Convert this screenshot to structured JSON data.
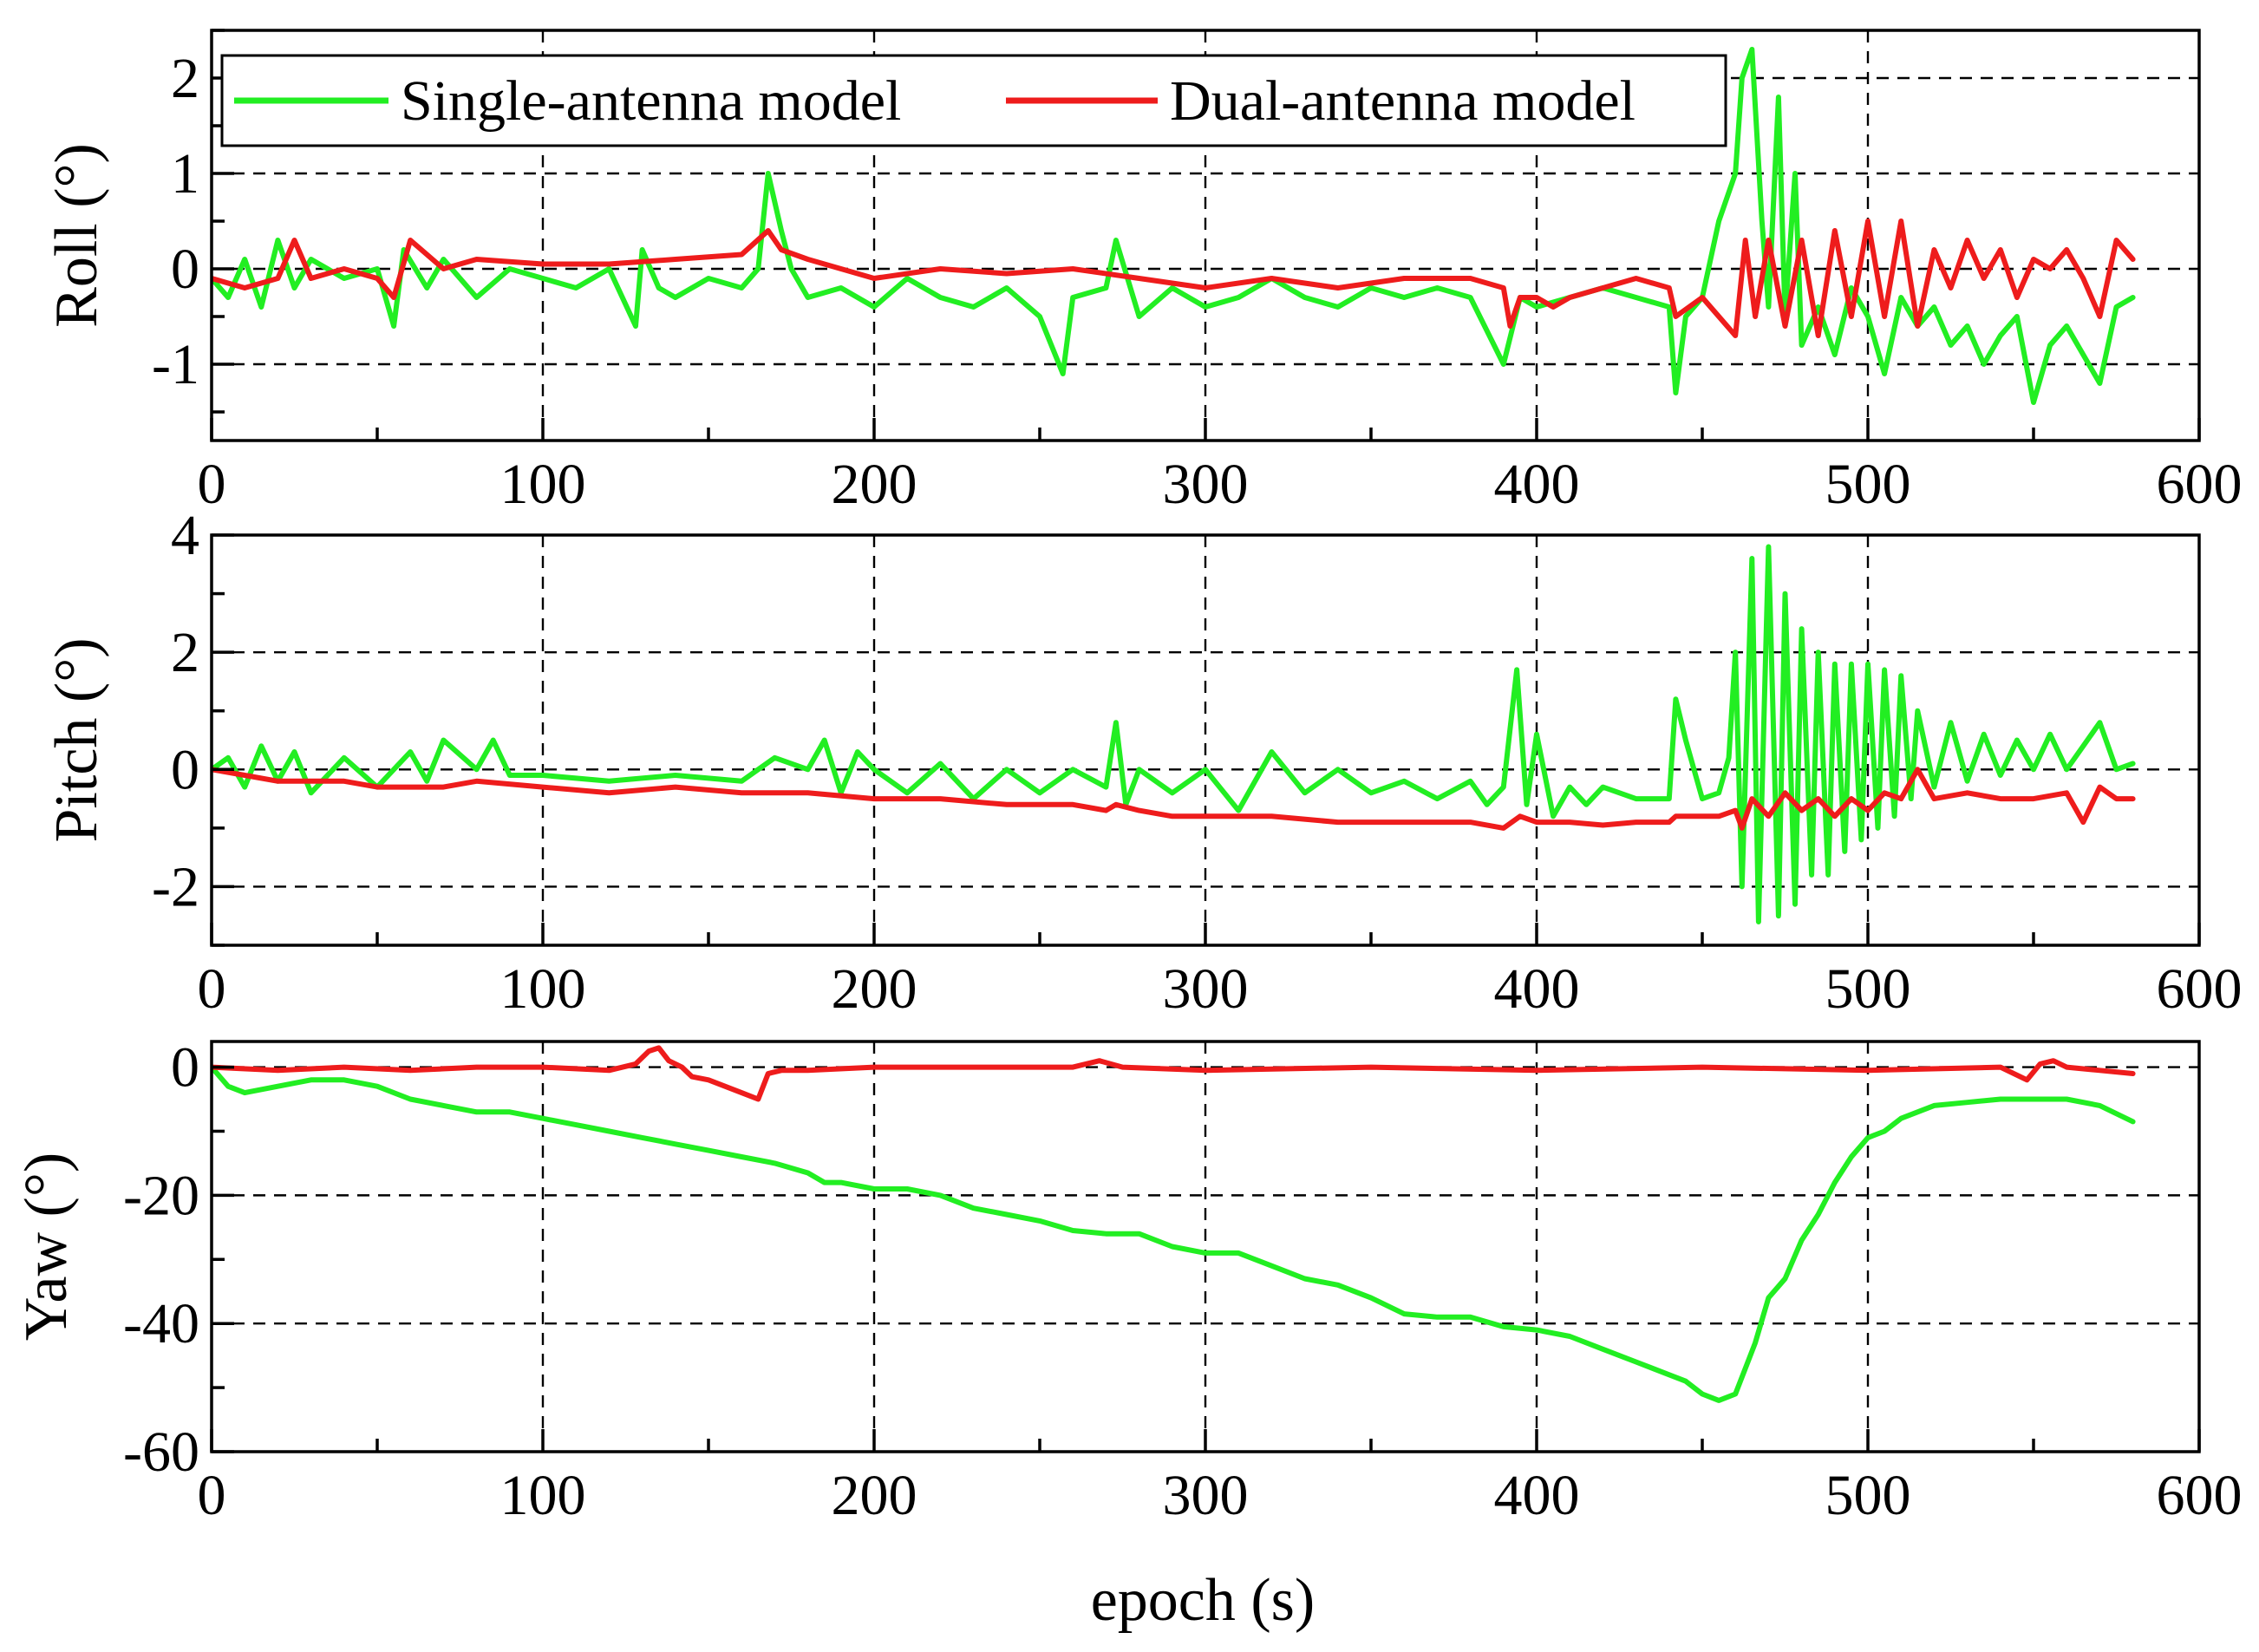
{
  "chart_data": {
    "type": "line",
    "xlabel": "epoch (s)",
    "x_range": [
      0,
      600
    ],
    "x_ticks": [
      0,
      100,
      200,
      300,
      400,
      500,
      600
    ],
    "legend": {
      "placement": "top-left of first panel",
      "entries": [
        "Single-antenna model",
        "Dual-antenna model"
      ]
    },
    "colors": {
      "single": "#22ee22",
      "dual": "#ee1c1c"
    },
    "panels": [
      {
        "id": "roll",
        "ylabel": "Roll (°)",
        "ylim": [
          -1.8,
          2.5
        ],
        "y_ticks": [
          -1,
          0,
          1,
          2
        ],
        "series": [
          {
            "name": "Single-antenna model",
            "x": [
              0,
              5,
              10,
              15,
              20,
              25,
              30,
              40,
              50,
              55,
              58,
              65,
              70,
              80,
              90,
              100,
              110,
              120,
              128,
              130,
              135,
              140,
              150,
              160,
              165,
              168,
              172,
              175,
              180,
              190,
              200,
              210,
              220,
              230,
              240,
              250,
              257,
              260,
              270,
              273,
              280,
              290,
              300,
              310,
              320,
              330,
              340,
              350,
              360,
              370,
              380,
              390,
              395,
              400,
              410,
              420,
              430,
              440,
              442,
              445,
              450,
              455,
              460,
              462,
              465,
              468,
              470,
              473,
              475,
              478,
              480,
              485,
              490,
              495,
              500,
              505,
              510,
              515,
              520,
              525,
              530,
              535,
              540,
              545,
              550,
              555,
              560,
              565,
              570,
              575,
              580
            ],
            "values": [
              -0.1,
              -0.3,
              0.1,
              -0.4,
              0.3,
              -0.2,
              0.1,
              -0.1,
              0.0,
              -0.6,
              0.2,
              -0.2,
              0.1,
              -0.3,
              0.0,
              -0.1,
              -0.2,
              0.0,
              -0.6,
              0.2,
              -0.2,
              -0.3,
              -0.1,
              -0.2,
              0.0,
              1.0,
              0.4,
              0.0,
              -0.3,
              -0.2,
              -0.4,
              -0.1,
              -0.3,
              -0.4,
              -0.2,
              -0.5,
              -1.1,
              -0.3,
              -0.2,
              0.3,
              -0.5,
              -0.2,
              -0.4,
              -0.3,
              -0.1,
              -0.3,
              -0.4,
              -0.2,
              -0.3,
              -0.2,
              -0.3,
              -1.0,
              -0.3,
              -0.4,
              -0.3,
              -0.2,
              -0.3,
              -0.4,
              -1.3,
              -0.5,
              -0.3,
              0.5,
              1.0,
              2.0,
              2.3,
              0.5,
              -0.4,
              1.8,
              -0.5,
              1.0,
              -0.8,
              -0.4,
              -0.9,
              -0.2,
              -0.5,
              -1.1,
              -0.3,
              -0.6,
              -0.4,
              -0.8,
              -0.6,
              -1.0,
              -0.7,
              -0.5,
              -1.4,
              -0.8,
              -0.6,
              -0.9,
              -1.2,
              -0.4,
              -0.3
            ]
          },
          {
            "name": "Dual-antenna model",
            "x": [
              0,
              10,
              20,
              25,
              30,
              40,
              50,
              55,
              60,
              70,
              80,
              100,
              120,
              140,
              160,
              168,
              172,
              180,
              190,
              200,
              220,
              240,
              260,
              280,
              300,
              320,
              340,
              360,
              380,
              390,
              392,
              395,
              400,
              405,
              410,
              420,
              430,
              440,
              442,
              450,
              455,
              460,
              463,
              466,
              470,
              475,
              480,
              485,
              490,
              495,
              500,
              505,
              510,
              515,
              520,
              525,
              530,
              535,
              540,
              545,
              550,
              555,
              560,
              565,
              570,
              575,
              580
            ],
            "values": [
              -0.1,
              -0.2,
              -0.1,
              0.3,
              -0.1,
              0.0,
              -0.1,
              -0.3,
              0.3,
              0.0,
              0.1,
              0.05,
              0.05,
              0.1,
              0.15,
              0.4,
              0.2,
              0.1,
              0.0,
              -0.1,
              0.0,
              -0.05,
              0.0,
              -0.1,
              -0.2,
              -0.1,
              -0.2,
              -0.1,
              -0.1,
              -0.2,
              -0.6,
              -0.3,
              -0.3,
              -0.4,
              -0.3,
              -0.2,
              -0.1,
              -0.2,
              -0.5,
              -0.3,
              -0.5,
              -0.7,
              0.3,
              -0.5,
              0.3,
              -0.6,
              0.3,
              -0.7,
              0.4,
              -0.5,
              0.5,
              -0.5,
              0.5,
              -0.6,
              0.2,
              -0.2,
              0.3,
              -0.1,
              0.2,
              -0.3,
              0.1,
              0.0,
              0.2,
              -0.1,
              -0.5,
              0.3,
              0.1
            ]
          }
        ]
      },
      {
        "id": "pitch",
        "ylabel": "Pitch (°)",
        "ylim": [
          -3,
          4
        ],
        "y_ticks": [
          -2,
          0,
          2,
          4
        ],
        "series": [
          {
            "name": "Single-antenna model",
            "x": [
              0,
              5,
              10,
              15,
              20,
              25,
              30,
              40,
              50,
              60,
              65,
              70,
              80,
              85,
              90,
              100,
              120,
              140,
              160,
              170,
              180,
              185,
              190,
              195,
              200,
              210,
              220,
              230,
              240,
              250,
              260,
              270,
              273,
              276,
              280,
              290,
              300,
              310,
              320,
              330,
              340,
              350,
              360,
              370,
              380,
              385,
              390,
              394,
              397,
              400,
              405,
              410,
              415,
              420,
              430,
              440,
              442,
              445,
              450,
              455,
              458,
              460,
              462,
              465,
              467,
              470,
              473,
              475,
              478,
              480,
              483,
              485,
              488,
              490,
              493,
              495,
              498,
              500,
              503,
              505,
              508,
              510,
              513,
              515,
              520,
              525,
              530,
              535,
              540,
              545,
              550,
              555,
              560,
              565,
              570,
              575,
              580
            ],
            "values": [
              0.0,
              0.2,
              -0.3,
              0.4,
              -0.2,
              0.3,
              -0.4,
              0.2,
              -0.3,
              0.3,
              -0.2,
              0.5,
              0.0,
              0.5,
              -0.1,
              -0.1,
              -0.2,
              -0.1,
              -0.2,
              0.2,
              0.0,
              0.5,
              -0.4,
              0.3,
              0.0,
              -0.4,
              0.1,
              -0.5,
              0.0,
              -0.4,
              0.0,
              -0.3,
              0.8,
              -0.6,
              0.0,
              -0.4,
              0.0,
              -0.7,
              0.3,
              -0.4,
              0.0,
              -0.4,
              -0.2,
              -0.5,
              -0.2,
              -0.6,
              -0.3,
              1.7,
              -0.6,
              0.6,
              -0.8,
              -0.3,
              -0.6,
              -0.3,
              -0.5,
              -0.5,
              1.2,
              0.5,
              -0.5,
              -0.4,
              0.2,
              2.0,
              -2.0,
              3.6,
              -2.6,
              3.8,
              -2.5,
              3.0,
              -2.3,
              2.4,
              -1.8,
              2.0,
              -1.8,
              1.8,
              -1.4,
              1.8,
              -1.2,
              1.8,
              -1.0,
              1.7,
              -0.8,
              1.6,
              -0.5,
              1.0,
              -0.3,
              0.8,
              -0.2,
              0.6,
              -0.1,
              0.5,
              0.0,
              0.6,
              0.0,
              0.4,
              0.8,
              0.0,
              0.1
            ]
          },
          {
            "name": "Dual-antenna model",
            "x": [
              0,
              10,
              20,
              30,
              40,
              50,
              60,
              70,
              80,
              100,
              120,
              140,
              160,
              170,
              180,
              200,
              220,
              240,
              260,
              270,
              273,
              280,
              290,
              300,
              320,
              340,
              360,
              380,
              390,
              395,
              400,
              410,
              420,
              430,
              440,
              442,
              450,
              455,
              460,
              462,
              465,
              470,
              475,
              480,
              485,
              490,
              495,
              500,
              505,
              510,
              515,
              520,
              530,
              540,
              550,
              560,
              565,
              570,
              575,
              580
            ],
            "values": [
              0.0,
              -0.1,
              -0.2,
              -0.2,
              -0.2,
              -0.3,
              -0.3,
              -0.3,
              -0.2,
              -0.3,
              -0.4,
              -0.3,
              -0.4,
              -0.4,
              -0.4,
              -0.5,
              -0.5,
              -0.6,
              -0.6,
              -0.7,
              -0.6,
              -0.7,
              -0.8,
              -0.8,
              -0.8,
              -0.9,
              -0.9,
              -0.9,
              -1.0,
              -0.8,
              -0.9,
              -0.9,
              -0.95,
              -0.9,
              -0.9,
              -0.8,
              -0.8,
              -0.8,
              -0.7,
              -1.0,
              -0.5,
              -0.8,
              -0.4,
              -0.7,
              -0.5,
              -0.8,
              -0.5,
              -0.7,
              -0.4,
              -0.5,
              0.0,
              -0.5,
              -0.4,
              -0.5,
              -0.5,
              -0.4,
              -0.9,
              -0.3,
              -0.5,
              -0.5
            ]
          }
        ]
      },
      {
        "id": "yaw",
        "ylabel": "Yaw (°)",
        "ylim": [
          -60,
          4
        ],
        "y_ticks": [
          -60,
          -40,
          -20,
          0
        ],
        "series": [
          {
            "name": "Single-antenna model",
            "x": [
              0,
              5,
              10,
              20,
              30,
              40,
              50,
              60,
              70,
              80,
              90,
              100,
              110,
              120,
              130,
              140,
              150,
              160,
              170,
              180,
              185,
              190,
              200,
              210,
              220,
              230,
              240,
              250,
              260,
              270,
              280,
              290,
              300,
              310,
              320,
              330,
              340,
              350,
              360,
              370,
              380,
              390,
              400,
              410,
              420,
              430,
              440,
              445,
              450,
              455,
              460,
              463,
              466,
              470,
              475,
              480,
              485,
              490,
              495,
              500,
              505,
              510,
              515,
              520,
              530,
              540,
              550,
              560,
              570,
              580
            ],
            "values": [
              0.0,
              -3.0,
              -4.0,
              -3.0,
              -2.0,
              -2.0,
              -3.0,
              -5.0,
              -6.0,
              -7.0,
              -7.0,
              -8.0,
              -9.0,
              -10.0,
              -11.0,
              -12.0,
              -13.0,
              -14.0,
              -15.0,
              -16.5,
              -18.0,
              -18.0,
              -19.0,
              -19.0,
              -20.0,
              -22.0,
              -23.0,
              -24.0,
              -25.5,
              -26.0,
              -26.0,
              -28.0,
              -29.0,
              -29.0,
              -31.0,
              -33.0,
              -34.0,
              -36.0,
              -38.5,
              -39.0,
              -39.0,
              -40.5,
              -41.0,
              -42.0,
              -44.0,
              -46.0,
              -48.0,
              -49.0,
              -51.0,
              -52.0,
              -51.0,
              -47.0,
              -43.0,
              -36.0,
              -33.0,
              -27.0,
              -23.0,
              -18.0,
              -14.0,
              -11.0,
              -10.0,
              -8.0,
              -7.0,
              -6.0,
              -5.5,
              -5.0,
              -5.0,
              -5.0,
              -6.0,
              -8.5
            ]
          },
          {
            "name": "Dual-antenna model",
            "x": [
              0,
              20,
              40,
              60,
              80,
              100,
              120,
              128,
              132,
              135,
              138,
              142,
              145,
              150,
              155,
              160,
              165,
              168,
              172,
              180,
              200,
              230,
              260,
              268,
              275,
              300,
              350,
              400,
              450,
              500,
              540,
              548,
              552,
              556,
              560,
              570,
              580
            ],
            "values": [
              0.0,
              -0.5,
              0.0,
              -0.5,
              0.0,
              0.0,
              -0.5,
              0.5,
              2.5,
              3.0,
              1.0,
              0.0,
              -1.5,
              -2.0,
              -3.0,
              -4.0,
              -5.0,
              -1.0,
              -0.5,
              -0.5,
              0.0,
              0.0,
              0.0,
              1.0,
              0.0,
              -0.5,
              0.0,
              -0.5,
              0.0,
              -0.5,
              0.0,
              -2.0,
              0.5,
              1.0,
              0.0,
              -0.5,
              -1.0
            ]
          }
        ]
      }
    ]
  }
}
